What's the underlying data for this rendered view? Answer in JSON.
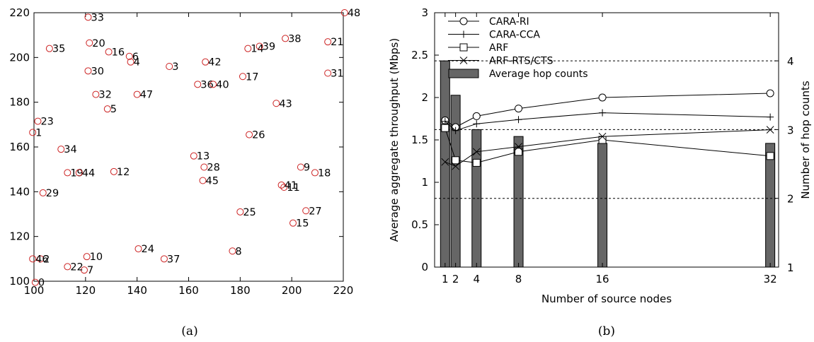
{
  "chart_data": [
    {
      "type": "scatter",
      "caption": "(a)",
      "xlim": [
        100,
        220
      ],
      "ylim": [
        100,
        220
      ],
      "xticks": [
        100,
        120,
        140,
        160,
        180,
        200,
        220
      ],
      "yticks": [
        100,
        120,
        140,
        160,
        180,
        200,
        220
      ],
      "marker_color": "#cc2222",
      "points": [
        {
          "label": "0",
          "x": 100.5,
          "y": 99.5
        },
        {
          "label": "1",
          "x": 99.5,
          "y": 166.5
        },
        {
          "label": "2",
          "x": 102.5,
          "y": 110
        },
        {
          "label": "3",
          "x": 152.5,
          "y": 196
        },
        {
          "label": "4",
          "x": 137.5,
          "y": 198
        },
        {
          "label": "5",
          "x": 128.5,
          "y": 177
        },
        {
          "label": "6",
          "x": 137,
          "y": 200.5
        },
        {
          "label": "7",
          "x": 119.5,
          "y": 105
        },
        {
          "label": "8",
          "x": 177,
          "y": 113.5
        },
        {
          "label": "9",
          "x": 203.5,
          "y": 151
        },
        {
          "label": "10",
          "x": 120.5,
          "y": 111
        },
        {
          "label": "11",
          "x": 197,
          "y": 142
        },
        {
          "label": "12",
          "x": 131,
          "y": 149
        },
        {
          "label": "13",
          "x": 162,
          "y": 156
        },
        {
          "label": "14",
          "x": 183,
          "y": 204
        },
        {
          "label": "15",
          "x": 200.5,
          "y": 126
        },
        {
          "label": "16",
          "x": 129,
          "y": 202.5
        },
        {
          "label": "17",
          "x": 181,
          "y": 191.5
        },
        {
          "label": "18",
          "x": 209,
          "y": 148.5
        },
        {
          "label": "19",
          "x": 113,
          "y": 148.5
        },
        {
          "label": "20",
          "x": 121.5,
          "y": 206.5
        },
        {
          "label": "21",
          "x": 214,
          "y": 207
        },
        {
          "label": "22",
          "x": 113,
          "y": 106.5
        },
        {
          "label": "23",
          "x": 101.5,
          "y": 171.5
        },
        {
          "label": "24",
          "x": 140.5,
          "y": 114.5
        },
        {
          "label": "25",
          "x": 180,
          "y": 131
        },
        {
          "label": "26",
          "x": 183.5,
          "y": 165.5
        },
        {
          "label": "27",
          "x": 205.5,
          "y": 131.5
        },
        {
          "label": "28",
          "x": 166,
          "y": 151
        },
        {
          "label": "29",
          "x": 103.5,
          "y": 139.5
        },
        {
          "label": "30",
          "x": 121,
          "y": 194
        },
        {
          "label": "31",
          "x": 214,
          "y": 193
        },
        {
          "label": "32",
          "x": 124,
          "y": 183.5
        },
        {
          "label": "33",
          "x": 121,
          "y": 218
        },
        {
          "label": "34",
          "x": 110.5,
          "y": 159
        },
        {
          "label": "35",
          "x": 106,
          "y": 204
        },
        {
          "label": "36",
          "x": 163.5,
          "y": 188
        },
        {
          "label": "37",
          "x": 150.5,
          "y": 110
        },
        {
          "label": "38",
          "x": 197.5,
          "y": 208.5
        },
        {
          "label": "39",
          "x": 187.5,
          "y": 205
        },
        {
          "label": "40",
          "x": 169.5,
          "y": 188
        },
        {
          "label": "41",
          "x": 196,
          "y": 143
        },
        {
          "label": "42",
          "x": 166.5,
          "y": 198
        },
        {
          "label": "43",
          "x": 194,
          "y": 179.5
        },
        {
          "label": "44",
          "x": 117.5,
          "y": 148.5
        },
        {
          "label": "45",
          "x": 165.5,
          "y": 145
        },
        {
          "label": "46",
          "x": 99.5,
          "y": 110
        },
        {
          "label": "47",
          "x": 140,
          "y": 183.5
        },
        {
          "label": "48",
          "x": 220.5,
          "y": 220
        }
      ]
    },
    {
      "type": "line",
      "caption": "(b)",
      "xlabel": "Number of source nodes",
      "ylabel": "Average aggregate throughput (Mbps)",
      "y2label": "Number of hop counts",
      "xlim": [
        0,
        32.8
      ],
      "ylim": [
        0,
        3
      ],
      "xticks": [
        1,
        2,
        4,
        8,
        16,
        32
      ],
      "yticks": [
        "0",
        "0.5",
        "1",
        "1.5",
        "2",
        "2.5",
        "3"
      ],
      "y2lim": [
        1,
        4.7
      ],
      "y2ticks": [
        1,
        2,
        3,
        4
      ],
      "legend_position": "top-left",
      "grid": false,
      "x": [
        1,
        2,
        4,
        8,
        16,
        32
      ],
      "series": [
        {
          "name": "CARA-RI",
          "marker": "circle",
          "values": [
            1.73,
            1.65,
            1.78,
            1.87,
            2.0,
            2.05
          ]
        },
        {
          "name": "CARA-CCA",
          "marker": "plus",
          "values": [
            1.72,
            1.61,
            1.69,
            1.74,
            1.82,
            1.77
          ]
        },
        {
          "name": "ARF",
          "marker": "square",
          "values": [
            1.64,
            1.26,
            1.23,
            1.36,
            1.5,
            1.31
          ]
        },
        {
          "name": "ARF-RTS/CTS",
          "marker": "cross",
          "values": [
            1.24,
            1.19,
            1.36,
            1.42,
            1.54,
            1.62
          ]
        }
      ],
      "bars": {
        "name": "Average hop counts",
        "color": "#666666",
        "values": [
          4.0,
          3.5,
          3.0,
          2.9,
          2.8,
          2.8
        ]
      },
      "reference_lines_y2": [
        2,
        3,
        4
      ]
    }
  ]
}
